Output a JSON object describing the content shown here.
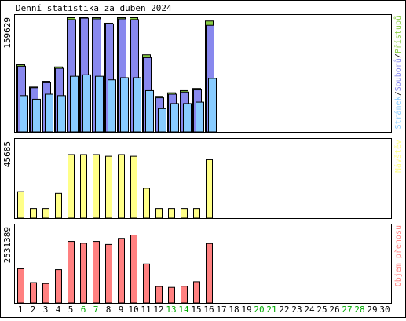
{
  "title": "Denní statistika za duben 2024",
  "colors": {
    "hits": "#88cc44",
    "files": "#8888ee",
    "pages": "#88ccff",
    "visits": "#ffff88",
    "traffic": "#ff8080",
    "weekend": "#00aa00",
    "border": "#000000"
  },
  "chart_data": [
    {
      "type": "bar",
      "name": "requests-panel",
      "ymax_label": "159629",
      "legend": [
        "Stránek",
        "Souborů",
        "Přístupů"
      ],
      "legend_sep": "/",
      "categories": [
        "1",
        "2",
        "3",
        "4",
        "5",
        "6",
        "7",
        "8",
        "9",
        "10",
        "11",
        "12",
        "13",
        "14",
        "15",
        "16",
        "17",
        "18",
        "19",
        "20",
        "21",
        "22",
        "23",
        "24",
        "25",
        "26",
        "27",
        "28",
        "29",
        "30"
      ],
      "weekend_days": [
        6,
        7,
        13,
        14,
        20,
        21,
        27,
        28
      ],
      "ylim": [
        0,
        159629
      ],
      "series": [
        {
          "name": "Přístupů",
          "values": [
            94000,
            63000,
            71000,
            91000,
            159629,
            159629,
            159629,
            152000,
            159629,
            159629,
            108000,
            50000,
            55000,
            58000,
            61000,
            155000,
            0,
            0,
            0,
            0,
            0,
            0,
            0,
            0,
            0,
            0,
            0,
            0,
            0,
            0
          ]
        },
        {
          "name": "Souborů",
          "values": [
            92000,
            62000,
            69000,
            89000,
            157000,
            159000,
            158000,
            151000,
            158000,
            157000,
            104000,
            48000,
            53000,
            56000,
            59000,
            149000,
            0,
            0,
            0,
            0,
            0,
            0,
            0,
            0,
            0,
            0,
            0,
            0,
            0,
            0
          ]
        },
        {
          "name": "Stránek",
          "values": [
            51000,
            46000,
            53000,
            51000,
            78000,
            80000,
            78000,
            73000,
            76000,
            76000,
            58000,
            33000,
            40000,
            40000,
            42000,
            75000,
            0,
            0,
            0,
            0,
            0,
            0,
            0,
            0,
            0,
            0,
            0,
            0,
            0,
            0
          ]
        }
      ]
    },
    {
      "type": "bar",
      "name": "visits-panel",
      "ymax_label": "45685",
      "legend": [
        "Návštěv"
      ],
      "ylim": [
        0,
        45685
      ],
      "series": [
        {
          "name": "Návštěv",
          "values": [
            16000,
            6000,
            6000,
            15000,
            38000,
            38000,
            38000,
            37000,
            38000,
            37000,
            18000,
            6000,
            6000,
            6000,
            6000,
            35000,
            0,
            0,
            0,
            0,
            0,
            0,
            0,
            0,
            0,
            0,
            0,
            0,
            0,
            0
          ]
        }
      ]
    },
    {
      "type": "bar",
      "name": "traffic-panel",
      "ymax_label": "2531389",
      "legend": [
        "Objem přenosu"
      ],
      "ylim": [
        0,
        2531389
      ],
      "series": [
        {
          "name": "Objem přenosu",
          "values": [
            1150000,
            690000,
            660000,
            1120000,
            2060000,
            2000000,
            2060000,
            1960000,
            2160000,
            2270000,
            1310000,
            560000,
            530000,
            570000,
            720000,
            1990000,
            0,
            0,
            0,
            0,
            0,
            0,
            0,
            0,
            0,
            0,
            0,
            0,
            0,
            0
          ]
        }
      ]
    }
  ]
}
